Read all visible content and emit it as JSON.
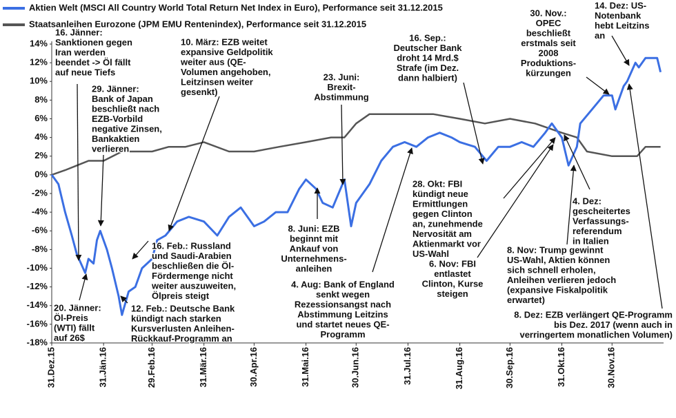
{
  "chart_data": {
    "type": "line",
    "xlim": [
      "2015-12-31",
      "2016-12-30"
    ],
    "xticks": [
      {
        "value": "2015-12-31",
        "label": "31.Dez.15"
      },
      {
        "value": "2016-01-31",
        "label": "31.Jän.16"
      },
      {
        "value": "2016-02-29",
        "label": "29.Feb.16"
      },
      {
        "value": "2016-03-31",
        "label": "31.Mär.16"
      },
      {
        "value": "2016-04-30",
        "label": "30.Apr.16"
      },
      {
        "value": "2016-05-31",
        "label": "31.Mai.16"
      },
      {
        "value": "2016-06-30",
        "label": "30.Jun.16"
      },
      {
        "value": "2016-07-31",
        "label": "31.Jul.16"
      },
      {
        "value": "2016-08-31",
        "label": "31.Aug.16"
      },
      {
        "value": "2016-09-30",
        "label": "30.Sep.16"
      },
      {
        "value": "2016-10-31",
        "label": "31.Okt.16"
      },
      {
        "value": "2016-11-30",
        "label": "30.Nov.16"
      }
    ],
    "ylim": [
      -18,
      14
    ],
    "yticks": [
      {
        "value": -18,
        "label": "-18%"
      },
      {
        "value": -16,
        "label": "-16%"
      },
      {
        "value": -14,
        "label": "-14%"
      },
      {
        "value": -12,
        "label": "-12%"
      },
      {
        "value": -10,
        "label": "-10%"
      },
      {
        "value": -8,
        "label": "-8%"
      },
      {
        "value": -6,
        "label": "-6%"
      },
      {
        "value": -4,
        "label": "-4%"
      },
      {
        "value": -2,
        "label": "-2%"
      },
      {
        "value": 0,
        "label": "0%"
      },
      {
        "value": 2,
        "label": "2%"
      },
      {
        "value": 4,
        "label": "4%"
      },
      {
        "value": 6,
        "label": "6%"
      },
      {
        "value": 8,
        "label": "8%"
      },
      {
        "value": 10,
        "label": "10%"
      },
      {
        "value": 12,
        "label": "12%"
      },
      {
        "value": 14,
        "label": "14%"
      }
    ],
    "grid": false,
    "series": [
      {
        "name": "Aktien Welt (MSCI All Country World Total Return Net Index in Euro), Performance seit 31.12.2015",
        "color": "#3b6fe3",
        "x": [
          "2015-12-31",
          "2016-01-04",
          "2016-01-08",
          "2016-01-12",
          "2016-01-15",
          "2016-01-20",
          "2016-01-22",
          "2016-01-25",
          "2016-01-27",
          "2016-01-29",
          "2016-02-02",
          "2016-02-05",
          "2016-02-09",
          "2016-02-11",
          "2016-02-15",
          "2016-02-19",
          "2016-02-23",
          "2016-02-29",
          "2016-03-03",
          "2016-03-08",
          "2016-03-15",
          "2016-03-22",
          "2016-03-31",
          "2016-04-08",
          "2016-04-15",
          "2016-04-22",
          "2016-04-30",
          "2016-05-06",
          "2016-05-13",
          "2016-05-20",
          "2016-05-27",
          "2016-05-31",
          "2016-06-06",
          "2016-06-10",
          "2016-06-16",
          "2016-06-23",
          "2016-06-27",
          "2016-06-30",
          "2016-07-08",
          "2016-07-15",
          "2016-07-22",
          "2016-07-29",
          "2016-08-05",
          "2016-08-12",
          "2016-08-19",
          "2016-08-26",
          "2016-08-31",
          "2016-09-09",
          "2016-09-16",
          "2016-09-23",
          "2016-09-30",
          "2016-10-07",
          "2016-10-14",
          "2016-10-21",
          "2016-10-25",
          "2016-10-31",
          "2016-11-04",
          "2016-11-09",
          "2016-11-11",
          "2016-11-18",
          "2016-11-25",
          "2016-11-30",
          "2016-12-02",
          "2016-12-07",
          "2016-12-09",
          "2016-12-14",
          "2016-12-16",
          "2016-12-20",
          "2016-12-23",
          "2016-12-27",
          "2016-12-29"
        ],
        "values": [
          0,
          -1,
          -4,
          -6.5,
          -8.5,
          -10.5,
          -9,
          -9.5,
          -7,
          -6,
          -8,
          -10,
          -13,
          -15,
          -12.5,
          -12,
          -10,
          -9,
          -7,
          -6.5,
          -5,
          -4.5,
          -5,
          -6.5,
          -4.5,
          -3.5,
          -5.5,
          -5,
          -4,
          -4,
          -1.5,
          -0.5,
          -1.5,
          -3,
          -3.5,
          -0.5,
          -5.5,
          -3,
          -1,
          1.5,
          3,
          3.5,
          3,
          4,
          4.5,
          4,
          3.5,
          3,
          1.5,
          3,
          3,
          3.5,
          3,
          4.5,
          5.5,
          4,
          1,
          3,
          5.5,
          7,
          8.5,
          8.5,
          7,
          9.5,
          10,
          12,
          11.5,
          12.5,
          12.5,
          12.5,
          11
        ]
      },
      {
        "name": "Staatsanleihen Eurozone (JPM EMU Rentenindex), Performance seit 31.12.2015",
        "color": "#555555",
        "x": [
          "2015-12-31",
          "2016-01-08",
          "2016-01-15",
          "2016-01-22",
          "2016-01-31",
          "2016-02-11",
          "2016-02-29",
          "2016-03-10",
          "2016-03-20",
          "2016-03-31",
          "2016-04-15",
          "2016-04-30",
          "2016-05-15",
          "2016-05-31",
          "2016-06-15",
          "2016-06-23",
          "2016-06-30",
          "2016-07-08",
          "2016-07-15",
          "2016-07-31",
          "2016-08-15",
          "2016-08-31",
          "2016-09-15",
          "2016-09-30",
          "2016-10-15",
          "2016-10-31",
          "2016-11-09",
          "2016-11-15",
          "2016-11-30",
          "2016-12-15",
          "2016-12-20",
          "2016-12-29"
        ],
        "values": [
          0,
          0.5,
          1,
          1.5,
          1.5,
          2.5,
          2.5,
          3,
          3,
          3.5,
          2.5,
          2.5,
          3,
          3.5,
          4,
          4,
          5.5,
          6.5,
          6.5,
          6.5,
          6.5,
          6,
          5.5,
          6,
          5.5,
          4.5,
          4,
          2.5,
          2,
          2,
          3,
          3
        ]
      }
    ],
    "annotations": [
      [
        "16. Jänner:",
        "Sanktionen gegen",
        "Iran werden",
        "beendet -> Öl fällt",
        "auf neue Tiefs"
      ],
      [
        "29. Jänner:",
        "Bank of Japan",
        "beschließt nach",
        "EZB-Vorbild",
        "negative Zinsen,",
        "Bankaktien",
        "verlieren"
      ],
      [
        "10. März: EZB weitet",
        "expansive Geldpolitik",
        "weiter aus (QE-",
        "Volumen angehoben,",
        "Leitzinsen weiter",
        "gesenkt)"
      ],
      [
        "23. Juni:",
        "Brexit-",
        "Abstimmung"
      ],
      [
        "16. Sep.:",
        "Deutscher Bank",
        "droht 14 Mrd.$",
        "Strafe (im Dez.",
        "dann halbiert)"
      ],
      [
        "30. Nov.:",
        "OPEC",
        "beschließt",
        "erstmals seit",
        "2008",
        "Produktions-",
        "kürzungen"
      ],
      [
        "14. Dez: US-",
        "Notenbank",
        "hebt Leitzins",
        "an"
      ],
      [
        "28. Okt: FBI",
        "kündigt neue",
        "Ermittlungen",
        "gegen Clinton",
        "an, zunehmende",
        "Nervosität am",
        "Aktienmarkt vor",
        "US-Wahl"
      ],
      [
        "4. Dez:",
        "gescheitertes",
        "Verfassungs-",
        "referendum",
        "in Italien"
      ],
      [
        "8. Juni: EZB",
        "beginnt mit",
        "Ankauf von",
        "Unternehmens-",
        "anleihen"
      ],
      [
        "16. Feb.: Russland",
        "und Saudi-Arabien",
        "beschließen die Öl-",
        "Fördermenge nicht",
        "weiter auszuweiten,",
        "Ölpreis steigt"
      ],
      [
        "4. Aug: Bank of England",
        "senkt wegen",
        "Rezessionsangst nach",
        "Abstimmung Leitzins",
        "und startet neues QE-",
        "Programm"
      ],
      [
        "6. Nov: FBI",
        "entlastet",
        "Clinton, Kurse",
        "steigen"
      ],
      [
        "8. Nov: Trump gewinnt",
        "US-Wahl, Aktien können",
        "sich schnell erholen,",
        "Anleihen verlieren jedoch",
        "(expansive Fiskalpolitik",
        "erwartet)"
      ],
      [
        "8. Dez: EZB verlängert QE-Programm",
        "bis Dez. 2017 (wenn auch in",
        "verringertem monatlichen Volumen)"
      ],
      [
        "20. Jänner:",
        "Öl-Preis",
        "(WTI) fällt",
        "auf 26$"
      ],
      [
        "12. Feb.: Deutsche Bank",
        "kündigt nach starken",
        "Kursverlusten Anleihen-",
        "Rückkauf-Programm an"
      ]
    ]
  }
}
